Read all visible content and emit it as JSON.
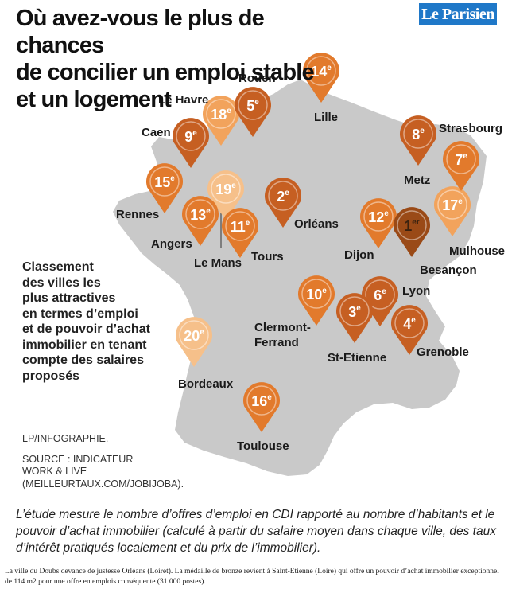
{
  "title": {
    "lines": [
      "Où avez-vous le plus de chances",
      "de concilier un emploi stable",
      "et un logement"
    ]
  },
  "logo": {
    "text": "Le Parisien"
  },
  "legend": {
    "lines": [
      "Classement",
      "des villes les",
      "plus attractives",
      "en termes d’emploi",
      "et de pouvoir d’achat",
      "immobilier en tenant",
      "compte des salaires",
      "proposés"
    ]
  },
  "source": {
    "credit": "LP/INFOGRAPHIE.",
    "lines": [
      "SOURCE : INDICATEUR",
      "WORK & LIVE",
      "(MEILLEURTAUX.COM/JOBIJOBA)."
    ]
  },
  "caption": "L’étude mesure le nombre d’offres d’emploi en CDI rapporté au nombre d’habitants et le pouvoir d’achat immobilier (calculé à partir du salaire moyen dans chaque ville, des taux d’intérêt pratiqués localement et du prix de l’immobilier).",
  "footnote": "La ville du Doubs devance de justesse Orléans (Loiret). La médaille de bronze revient à Saint-Etienne (Loire) qui offre un pouvoir d’achat immobilier exceptionnel de 114 m2 pour une offre en emplois conséquente (31 000 postes).",
  "colors": {
    "map": "#c9c9c9",
    "pin_dark": "#9a4a17",
    "pin_medium": "#c65f22",
    "pin_orange": "#e27a2c",
    "pin_light": "#f2a35c",
    "pin_pale": "#f6c08a",
    "rank_text_dark": "#3a2210",
    "rank_text_light": "#ffffff"
  },
  "cities": [
    {
      "name": "Besançon",
      "rank": "1",
      "suffix": "er"
    },
    {
      "name": "Orléans",
      "rank": "2",
      "suffix": "e"
    },
    {
      "name": "St-Etienne",
      "rank": "3",
      "suffix": "e"
    },
    {
      "name": "Grenoble",
      "rank": "4",
      "suffix": "e"
    },
    {
      "name": "Rouen",
      "rank": "5",
      "suffix": "e"
    },
    {
      "name": "Lyon",
      "rank": "6",
      "suffix": "e"
    },
    {
      "name": "Strasbourg",
      "rank": "7",
      "suffix": "e"
    },
    {
      "name": "Metz",
      "rank": "8",
      "suffix": "e"
    },
    {
      "name": "Caen",
      "rank": "9",
      "suffix": "e"
    },
    {
      "name": "Clermont-Ferrand",
      "label_lines": [
        "Clermont-",
        "Ferrand"
      ],
      "rank": "10",
      "suffix": "e"
    },
    {
      "name": "Tours",
      "rank": "11",
      "suffix": "e"
    },
    {
      "name": "Dijon",
      "rank": "12",
      "suffix": "e"
    },
    {
      "name": "Angers",
      "rank": "13",
      "suffix": "e"
    },
    {
      "name": "Lille",
      "rank": "14",
      "suffix": "e"
    },
    {
      "name": "Rennes",
      "rank": "15",
      "suffix": "e"
    },
    {
      "name": "Toulouse",
      "rank": "16",
      "suffix": "e"
    },
    {
      "name": "Mulhouse",
      "rank": "17",
      "suffix": "e"
    },
    {
      "name": "Le Havre",
      "rank": "18",
      "suffix": "e"
    },
    {
      "name": "Le Mans",
      "rank": "19",
      "suffix": "e"
    },
    {
      "name": "Bordeaux",
      "rank": "20",
      "suffix": "e"
    }
  ]
}
